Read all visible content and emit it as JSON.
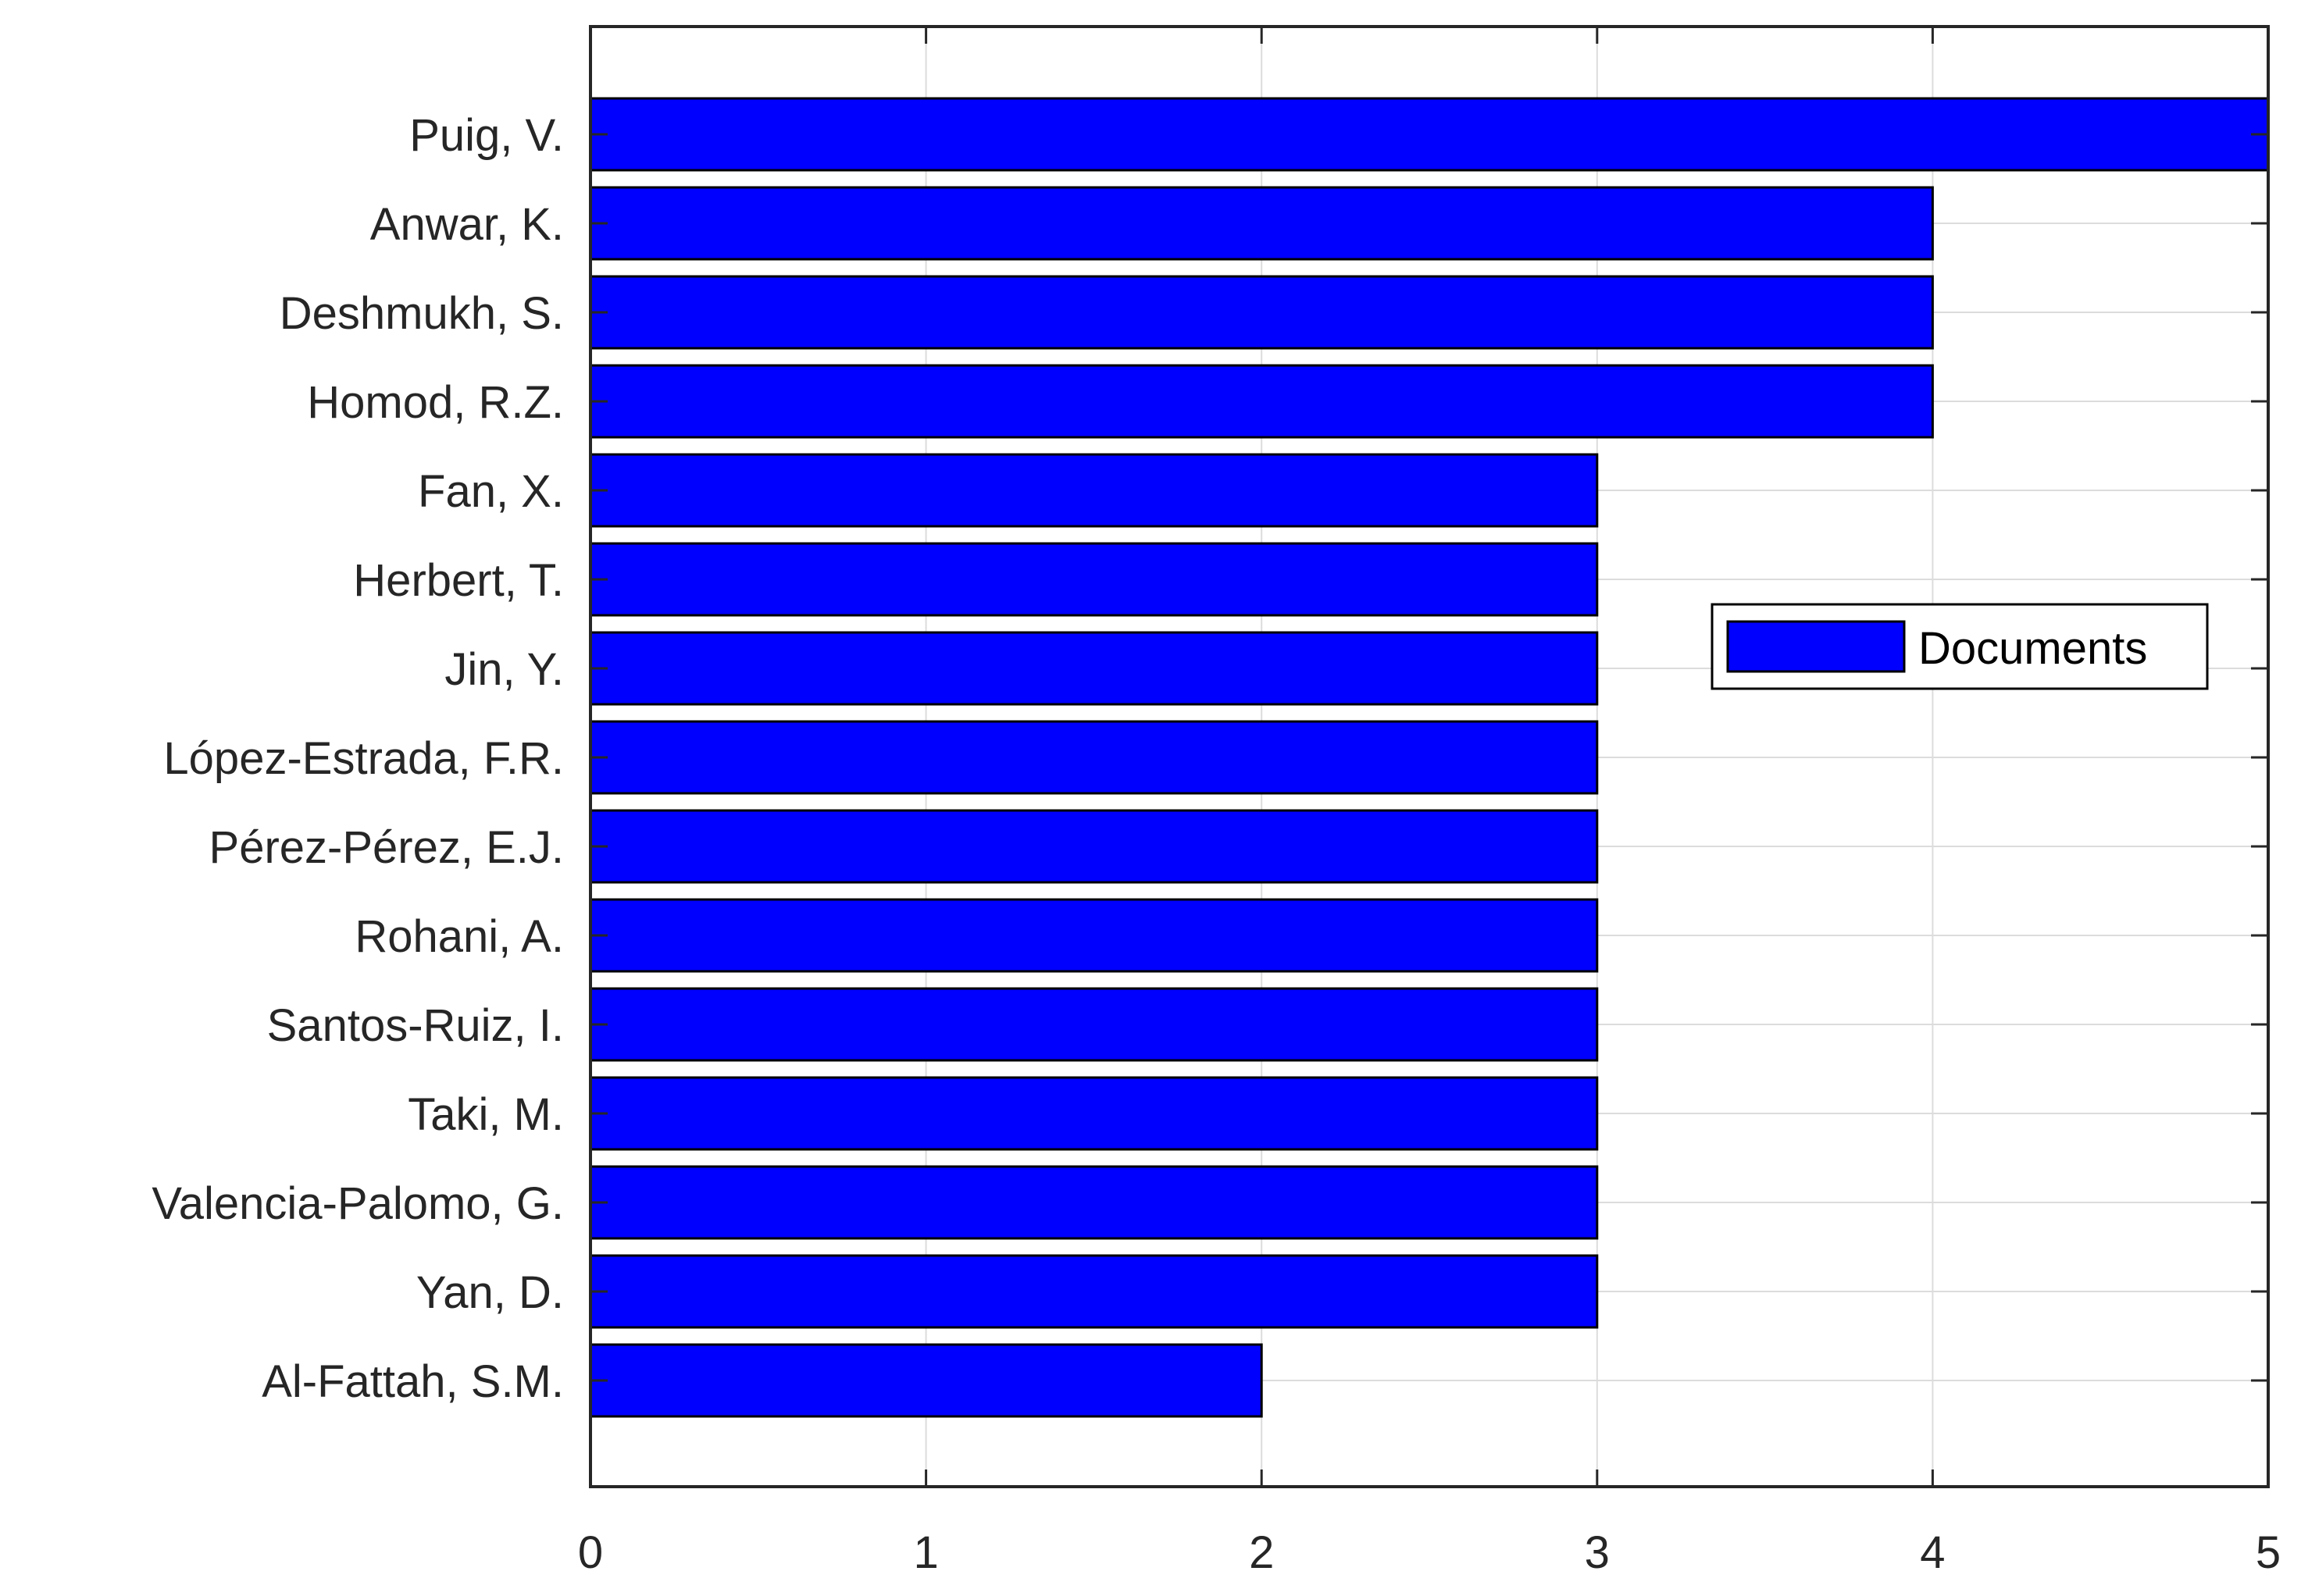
{
  "chart_data": {
    "type": "bar",
    "orientation": "horizontal",
    "categories": [
      "Puig, V.",
      "Anwar, K.",
      "Deshmukh, S.",
      "Homod, R.Z.",
      "Fan, X.",
      "Herbert, T.",
      "Jin, Y.",
      "López-Estrada, F.R.",
      "Pérez-Pérez, E.J.",
      "Rohani, A.",
      "Santos-Ruiz, I.",
      "Taki, M.",
      "Valencia-Palomo, G.",
      "Yan, D.",
      "Al-Fattah, S.M."
    ],
    "series": [
      {
        "name": "Documents",
        "values": [
          5,
          4,
          4,
          4,
          3,
          3,
          3,
          3,
          3,
          3,
          3,
          3,
          3,
          3,
          2
        ],
        "color": "#0000ff"
      }
    ],
    "title": "",
    "xlabel": "",
    "ylabel": "",
    "xlim": [
      0,
      5
    ],
    "xticks": [
      0,
      1,
      2,
      3,
      4,
      5
    ],
    "grid": true,
    "legend_position": "right"
  }
}
